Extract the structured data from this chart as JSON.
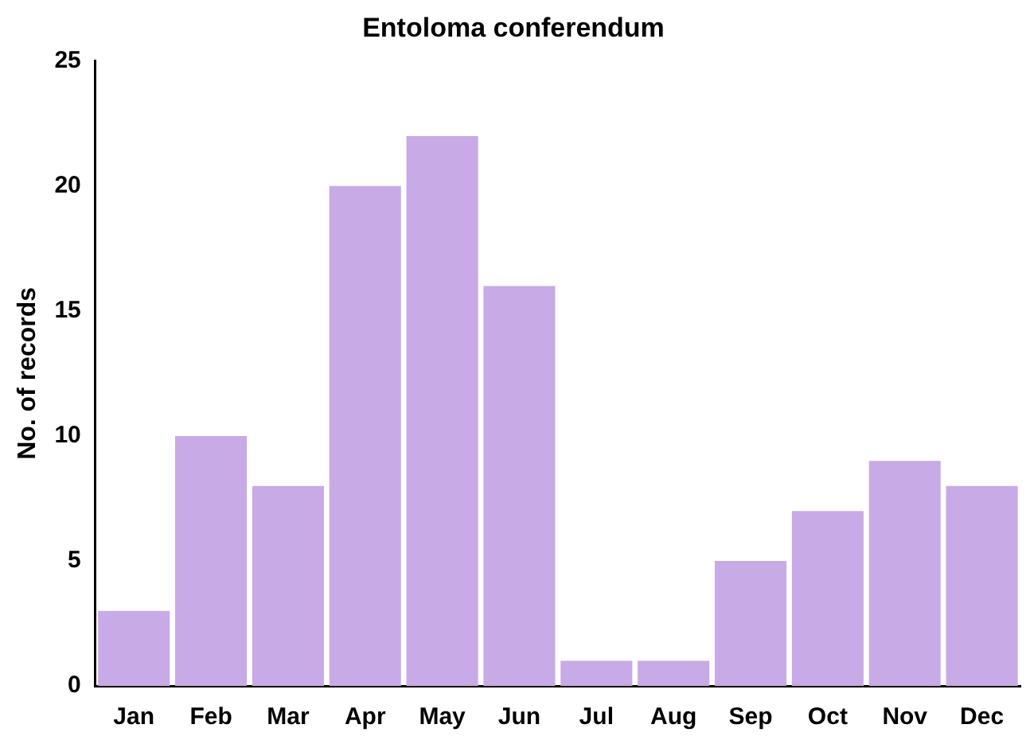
{
  "chart_data": {
    "type": "bar",
    "title": "Entoloma conferendum",
    "ylabel": "No. of records",
    "categories": [
      "Jan",
      "Feb",
      "Mar",
      "Apr",
      "May",
      "Jun",
      "Jul",
      "Aug",
      "Sep",
      "Oct",
      "Nov",
      "Dec"
    ],
    "values": [
      3,
      10,
      8,
      20,
      22,
      16,
      1,
      1,
      5,
      7,
      9,
      8
    ],
    "color": "#c8aae6",
    "ylim": [
      0,
      25
    ],
    "yticks": [
      0,
      5,
      10,
      15,
      20,
      25
    ],
    "grid": false,
    "legend": false
  }
}
